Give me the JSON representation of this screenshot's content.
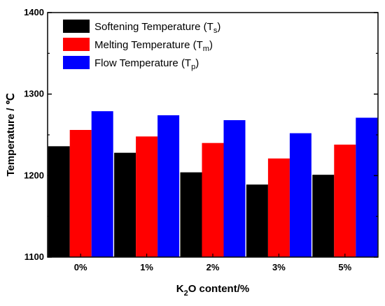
{
  "chart_data": {
    "type": "bar",
    "title": "",
    "categories": [
      "0%",
      "1%",
      "2%",
      "3%",
      "5%"
    ],
    "series": [
      {
        "name": "Softening Temperature (Ts)",
        "label_main": "Softening Temperature (T",
        "label_sub": "s",
        "label_end": ")",
        "color": "#000000",
        "values": [
          1236,
          1228,
          1204,
          1189,
          1201
        ]
      },
      {
        "name": "Melting Temperature (Tm)",
        "label_main": "Melting Temperature (T",
        "label_sub": "m",
        "label_end": ")",
        "color": "#ff0000",
        "values": [
          1256,
          1248,
          1240,
          1221,
          1238
        ]
      },
      {
        "name": "Flow Temperature (Tp)",
        "label_main": "Flow Temperature (T",
        "label_sub": "p",
        "label_end": ")",
        "color": "#0000ff",
        "values": [
          1279,
          1274,
          1268,
          1252,
          1271
        ]
      }
    ],
    "xlabel": {
      "prefix": "K",
      "sub": "2",
      "suffix": "O content/%"
    },
    "ylabel": "Temperature / ℃",
    "ylim": [
      1100,
      1400
    ],
    "yticks": [
      1100,
      1200,
      1300,
      1400
    ],
    "grid": false,
    "legend_position": "top-left"
  }
}
